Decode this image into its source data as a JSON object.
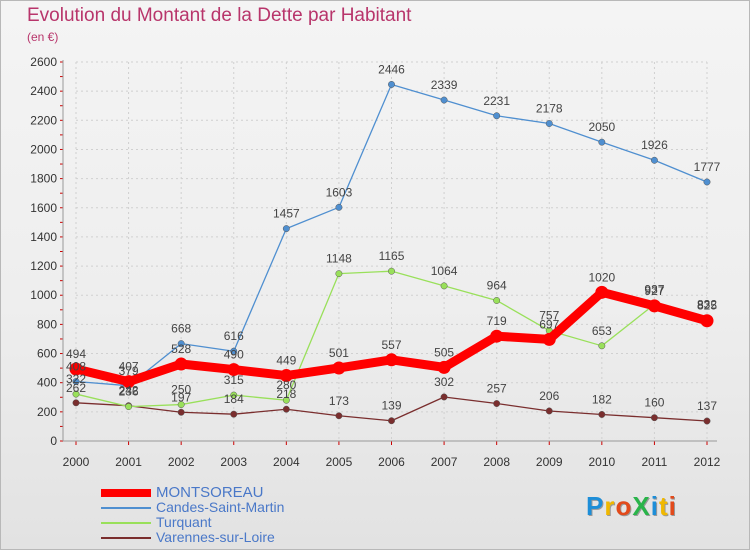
{
  "title": "Evolution du Montant de la Dette par Habitant",
  "subtitle": "(en €)",
  "brand": {
    "text": "ProXiti",
    "colors": [
      "#1d8ed8",
      "#f0b800",
      "#e24a1b",
      "#29b44a",
      "#1d8ed8",
      "#f0b800",
      "#e24a1b"
    ]
  },
  "chart_data": {
    "type": "line",
    "x": [
      "2000",
      "2001",
      "2002",
      "2003",
      "2004",
      "2005",
      "2006",
      "2007",
      "2008",
      "2009",
      "2010",
      "2011",
      "2012"
    ],
    "ylim": [
      0,
      2600
    ],
    "yticks": [
      "0",
      "200",
      "400",
      "600",
      "800",
      "1000",
      "1200",
      "1400",
      "1600",
      "1800",
      "2000",
      "2200",
      "2400",
      "2600"
    ],
    "grid": true,
    "legend_position": "bottom-left",
    "series": [
      {
        "name": "MONTSOREAU",
        "color": "#ff0000",
        "values": [
          494,
          407,
          528,
          490,
          449,
          501,
          557,
          505,
          719,
          697,
          1020,
          927,
          825
        ],
        "labels": [
          "494",
          "407",
          "528",
          "490",
          "449",
          "501",
          "557",
          "505",
          "719",
          "697",
          "1020",
          "927",
          "825"
        ]
      },
      {
        "name": "Candes-Saint-Martin",
        "color": "#4f8fd0",
        "values": [
          408,
          379,
          668,
          616,
          1457,
          1603,
          2446,
          2339,
          2231,
          2178,
          2050,
          1926,
          1777
        ],
        "labels": [
          "408",
          "379",
          "668",
          "616",
          "1457",
          "1603",
          "2446",
          "2339",
          "2231",
          "2178",
          "2050",
          "1926",
          "1777"
        ]
      },
      {
        "name": "Turquant",
        "color": "#99e05a",
        "values": [
          322,
          236,
          250,
          315,
          280,
          1148,
          1165,
          1064,
          964,
          757,
          653,
          937,
          832
        ],
        "labels": [
          "322",
          "236",
          "250",
          "315",
          "280",
          "1148",
          "1165",
          "1064",
          "964",
          "757",
          "653",
          "937",
          "832"
        ]
      },
      {
        "name": "Varennes-sur-Loire",
        "color": "#7a2e2e",
        "values": [
          262,
          242,
          197,
          184,
          218,
          173,
          139,
          302,
          257,
          206,
          182,
          160,
          137
        ],
        "labels": [
          "262",
          "242",
          "197",
          "184",
          "218",
          "173",
          "139",
          "302",
          "257",
          "206",
          "182",
          "160",
          "137"
        ]
      }
    ]
  },
  "legend": {
    "items": [
      "MONTSOREAU",
      "Candes-Saint-Martin",
      "Turquant",
      "Varennes-sur-Loire"
    ]
  }
}
